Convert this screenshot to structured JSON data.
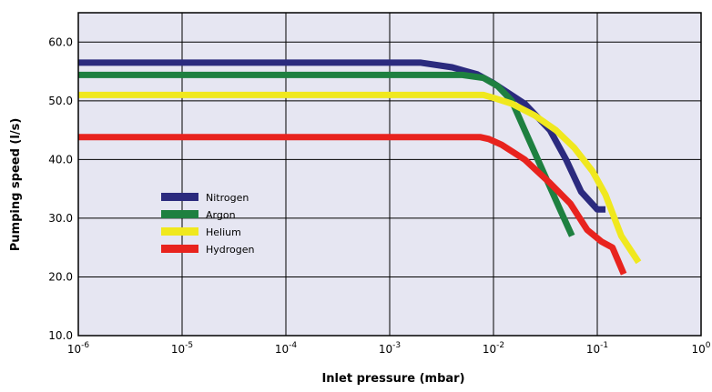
{
  "chart_data": {
    "type": "line",
    "xlabel": "Inlet pressure (mbar)",
    "ylabel": "Pumping speed (l/s)",
    "xscale": "log",
    "xlim": [
      1e-06,
      1
    ],
    "ylim": [
      10,
      65
    ],
    "grid": true,
    "legend_position": "left-middle",
    "plot_background": "#e6e6f2",
    "x_ticks": [
      {
        "base": "10",
        "exp": "-6"
      },
      {
        "base": "10",
        "exp": "-5"
      },
      {
        "base": "10",
        "exp": "-4"
      },
      {
        "base": "10",
        "exp": "-3"
      },
      {
        "base": "10",
        "exp": "-2"
      },
      {
        "base": "10",
        "exp": "-1"
      },
      {
        "base": "10",
        "exp": "0"
      }
    ],
    "y_ticks": [
      "10.0",
      "20.0",
      "30.0",
      "40.0",
      "50.0",
      "60.0"
    ],
    "series": [
      {
        "name": "Nitrogen",
        "color": "#2b2a7e",
        "x": [
          1e-06,
          0.002,
          0.004,
          0.007,
          0.01,
          0.02,
          0.035,
          0.05,
          0.07,
          0.1,
          0.12
        ],
        "y": [
          56.5,
          56.5,
          55.7,
          54.5,
          53,
          49.5,
          45,
          40,
          34.5,
          31.5,
          31.5
        ]
      },
      {
        "name": "Argon",
        "color": "#1e8040",
        "x": [
          1e-06,
          0.005,
          0.008,
          0.011,
          0.015,
          0.02,
          0.03,
          0.045,
          0.057
        ],
        "y": [
          54.4,
          54.4,
          53.9,
          52.5,
          50,
          45,
          38,
          31,
          27
        ]
      },
      {
        "name": "Helium",
        "color": "#f0e81e",
        "x": [
          1e-06,
          0.008,
          0.01,
          0.015,
          0.025,
          0.04,
          0.06,
          0.09,
          0.12,
          0.17,
          0.25
        ],
        "y": [
          51,
          51,
          50.5,
          49.5,
          47.5,
          45,
          42,
          38,
          34,
          27,
          22.5
        ]
      },
      {
        "name": "Hydrogen",
        "color": "#e8231e",
        "x": [
          1e-06,
          0.0075,
          0.009,
          0.012,
          0.02,
          0.035,
          0.055,
          0.08,
          0.11,
          0.14,
          0.18
        ],
        "y": [
          43.8,
          43.8,
          43.5,
          42.5,
          40,
          36,
          32.5,
          28,
          26,
          25,
          20.5
        ]
      }
    ]
  }
}
